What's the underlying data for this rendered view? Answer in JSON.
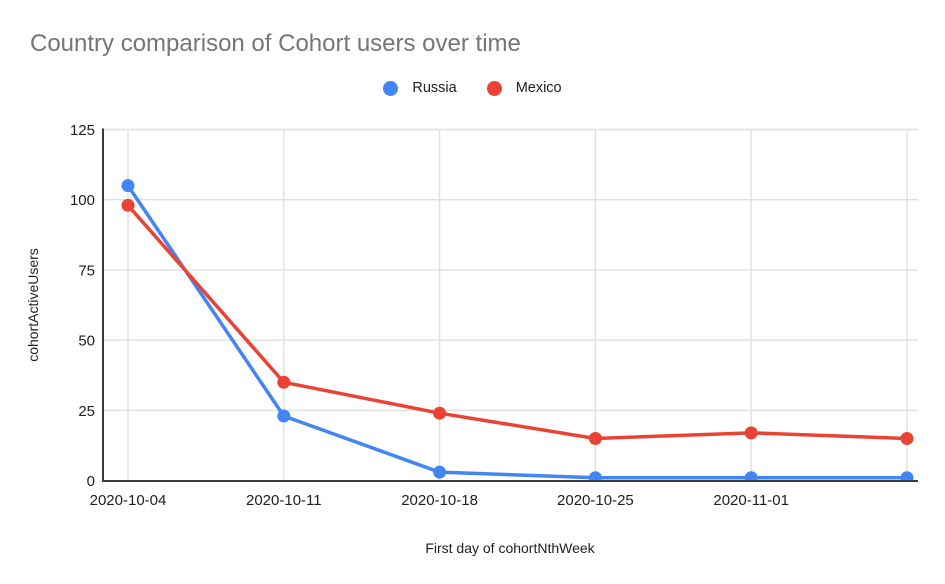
{
  "chart_data": {
    "type": "line",
    "title": "Country comparison of Cohort users over time",
    "xlabel": "First day of cohortNthWeek",
    "ylabel": "cohortActiveUsers",
    "x_tick_labels": [
      "2020-10-04",
      "2020-10-11",
      "2020-10-18",
      "2020-10-25",
      "2020-11-01"
    ],
    "num_points": 6,
    "y_ticks": [
      0,
      25,
      50,
      75,
      100,
      125
    ],
    "ylim": [
      0,
      125
    ],
    "grid": true,
    "legend_position": "top",
    "series": [
      {
        "name": "Russia",
        "color": "#4285F4",
        "values": [
          105,
          23,
          3,
          1,
          1,
          1
        ]
      },
      {
        "name": "Mexico",
        "color": "#EA4335",
        "values": [
          98,
          35,
          24,
          15,
          17,
          15
        ]
      }
    ]
  },
  "colors": {
    "grid": "#e0e0e0",
    "axis": "#3b3b3b",
    "title_text": "#757575",
    "tick_text": "#202124"
  }
}
